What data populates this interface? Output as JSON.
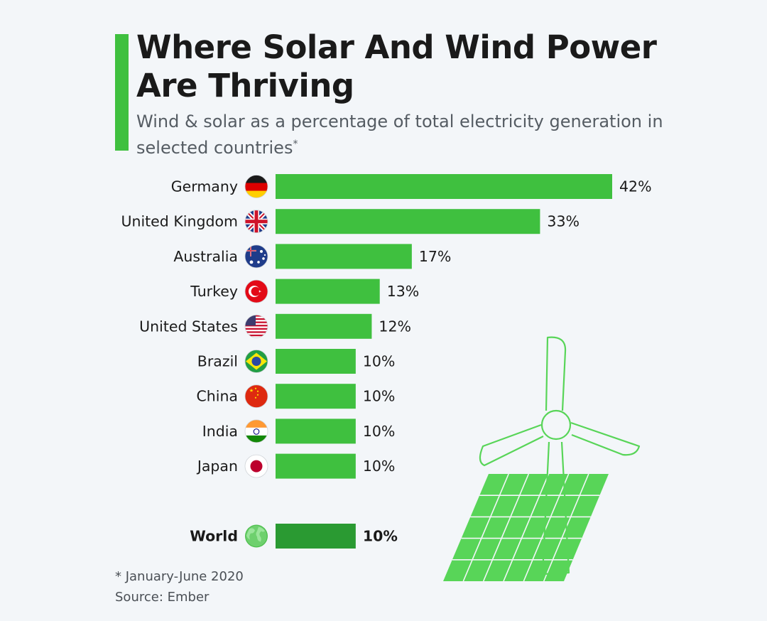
{
  "header": {
    "title_line1": "Where Solar And Wind Power",
    "title_line2": "Are Thriving",
    "subtitle": "Wind & solar as a percentage of total electricity generation in selected countries",
    "subtitle_mark": "*"
  },
  "footer": {
    "note": "* January-June 2020",
    "source": "Source: Ember"
  },
  "colors": {
    "accent": "#3fc03f",
    "bar": "#3fc03f",
    "world_bar": "#2a9a32",
    "illustration": "#58d558",
    "background": "#f3f6f9"
  },
  "chart_data": {
    "type": "bar",
    "orientation": "horizontal",
    "title": "Where Solar And Wind Power Are Thriving",
    "subtitle": "Wind & solar as a percentage of total electricity generation in selected countries",
    "unit": "%",
    "xlim": [
      0,
      42
    ],
    "categories": [
      "Germany",
      "United Kingdom",
      "Australia",
      "Turkey",
      "United States",
      "Brazil",
      "China",
      "India",
      "Japan",
      "World"
    ],
    "values": [
      42,
      33,
      17,
      13,
      12,
      10,
      10,
      10,
      10,
      10
    ],
    "labels": [
      "42%",
      "33%",
      "17%",
      "13%",
      "12%",
      "10%",
      "10%",
      "10%",
      "10%",
      "10%"
    ],
    "flags": [
      "germany-flag-icon",
      "uk-flag-icon",
      "australia-flag-icon",
      "turkey-flag-icon",
      "us-flag-icon",
      "brazil-flag-icon",
      "china-flag-icon",
      "india-flag-icon",
      "japan-flag-icon",
      "globe-icon"
    ],
    "highlight": "World"
  }
}
